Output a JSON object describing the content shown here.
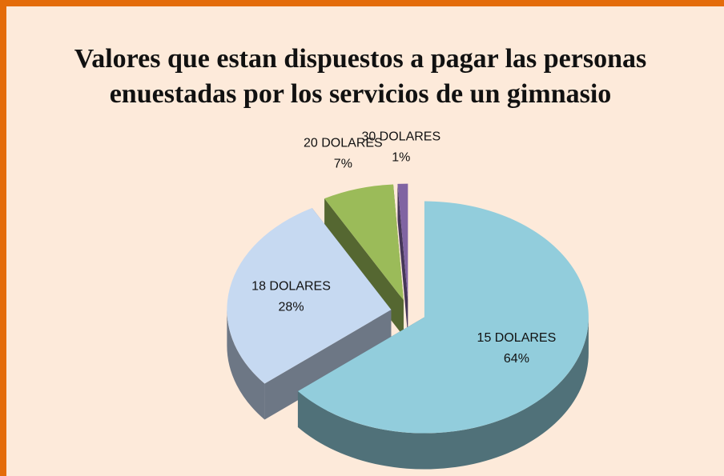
{
  "chart_data": {
    "type": "pie",
    "title": "Valores que estan dispuestos a pagar las personas enuestadas por los servicios de un gimnasio",
    "categories": [
      "15 DOLARES",
      "18 DOLARES",
      "20 DOLARES",
      "30 DOLARES"
    ],
    "values": [
      64,
      28,
      7,
      1
    ],
    "value_labels": [
      "64%",
      "28%",
      "7%",
      "1%"
    ],
    "colors": [
      "#92cddc",
      "#c6d9f1",
      "#9bbb59",
      "#8064a2"
    ]
  }
}
